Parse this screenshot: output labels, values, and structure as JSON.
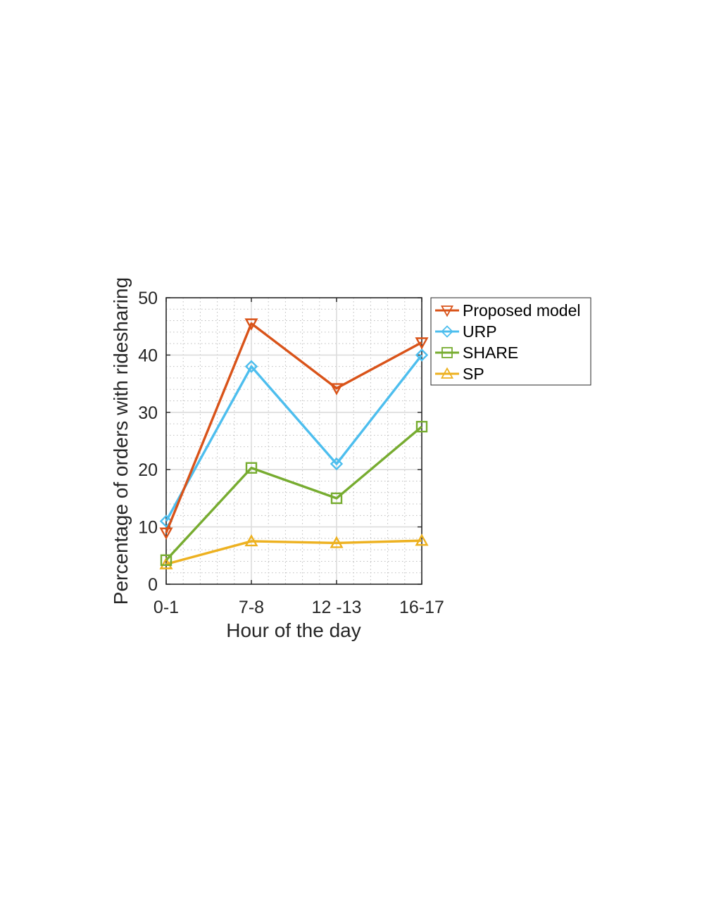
{
  "chart_data": {
    "type": "line",
    "categories": [
      "0-1",
      "7-8",
      "12 -13",
      "16-17"
    ],
    "xlabel": "Hour of the day",
    "ylabel": "Percentage of orders with ridesharing",
    "ylim": [
      0,
      50
    ],
    "yticks": [
      0,
      10,
      20,
      30,
      40,
      50
    ],
    "grid": true,
    "minor_grid": true,
    "legend_position": "outside-right-top",
    "series": [
      {
        "name": "Proposed model",
        "values": [
          9,
          45.5,
          34.2,
          42.2
        ],
        "color": "#D95319",
        "marker": "triangle-down"
      },
      {
        "name": "URP",
        "values": [
          11,
          38,
          21,
          40
        ],
        "color": "#4DBEEE",
        "marker": "diamond"
      },
      {
        "name": "SHARE",
        "values": [
          4.2,
          20.3,
          15,
          27.5
        ],
        "color": "#77AC30",
        "marker": "square"
      },
      {
        "name": "SP",
        "values": [
          3.5,
          7.5,
          7.2,
          7.6
        ],
        "color": "#EDB120",
        "marker": "triangle-up"
      }
    ]
  }
}
